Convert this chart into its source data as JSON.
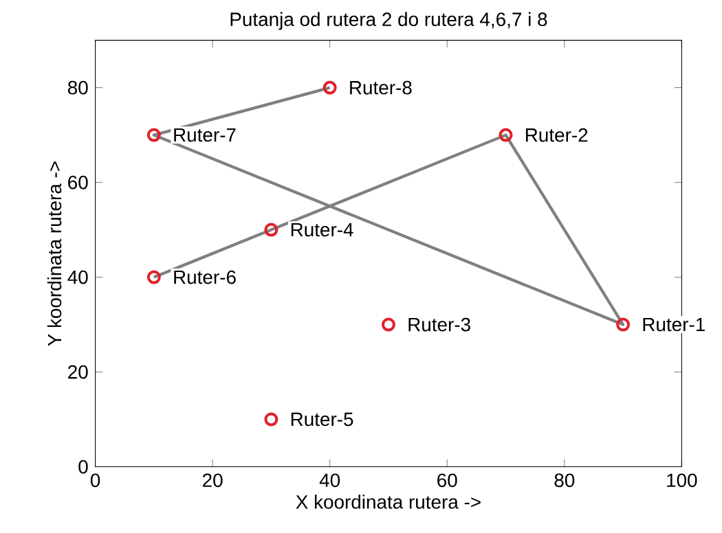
{
  "chart_data": {
    "type": "scatter",
    "title": "Putanja od rutera 2 do rutera 4,6,7 i 8",
    "xlabel": "X koordinata rutera ->",
    "ylabel": "Y koordinata rutera ->",
    "xlim": [
      0,
      100
    ],
    "ylim": [
      0,
      90
    ],
    "xticks": [
      0,
      20,
      40,
      60,
      80,
      100
    ],
    "yticks": [
      0,
      20,
      40,
      60,
      80
    ],
    "grid": false,
    "series": [
      {
        "type": "line",
        "color": "#808080",
        "marker": "none",
        "line_style": "solid",
        "x": [
          40,
          10,
          90,
          70,
          30,
          10
        ],
        "values": [
          80,
          70,
          30,
          70,
          50,
          40
        ]
      },
      {
        "color": "#e0202a",
        "marker": "circle",
        "x": [
          90,
          70,
          50,
          30,
          30,
          10,
          10,
          40
        ],
        "values": [
          30,
          70,
          30,
          50,
          10,
          40,
          70,
          80
        ]
      }
    ],
    "annotations": [
      {
        "text": "Ruter-1",
        "x": 90,
        "y": 30
      },
      {
        "text": "Ruter-2",
        "x": 70,
        "y": 70
      },
      {
        "text": "Ruter-3",
        "x": 50,
        "y": 30
      },
      {
        "text": "Ruter-4",
        "x": 30,
        "y": 50
      },
      {
        "text": "Ruter-5",
        "x": 30,
        "y": 10
      },
      {
        "text": "Ruter-6",
        "x": 10,
        "y": 40
      },
      {
        "text": "Ruter-7",
        "x": 10,
        "y": 70
      },
      {
        "text": "Ruter-8",
        "x": 40,
        "y": 80
      }
    ]
  }
}
